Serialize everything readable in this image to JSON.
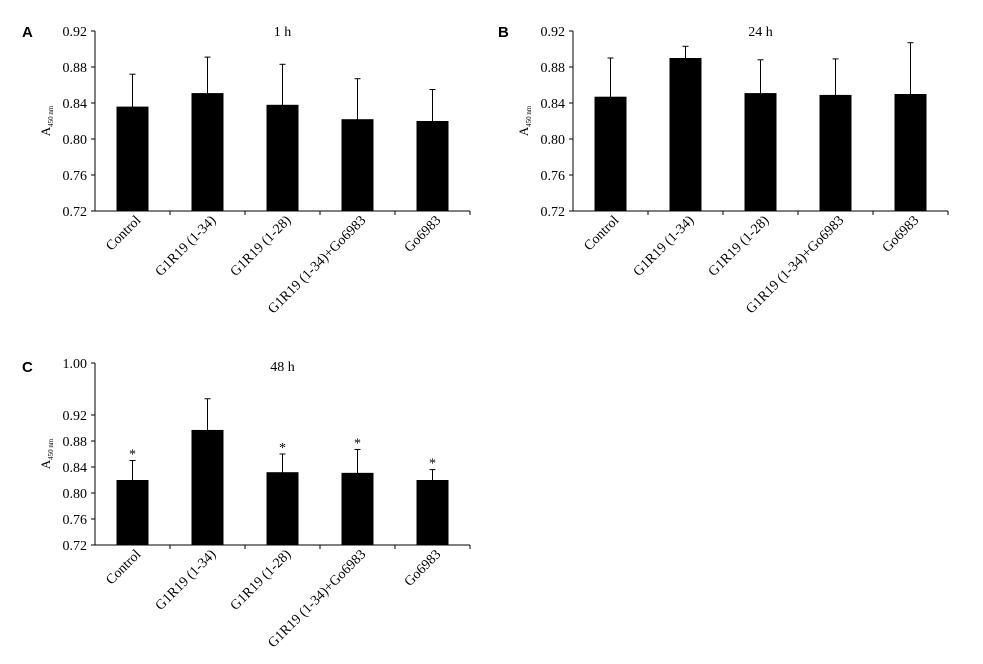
{
  "panels": [
    {
      "letter": "A",
      "ylabel_main": "A",
      "ylabel_sub": "450 nm",
      "chart_data": {
        "type": "bar",
        "title": "1 h",
        "categories": [
          "Control",
          "G1R19 (1-34)",
          "G1R19 (1-28)",
          "G1R19 (1-34)+Go6983",
          "Go6983"
        ],
        "series": [
          {
            "values": [
              0.836,
              0.851,
              0.838,
              0.822,
              0.82
            ],
            "errors": [
              0.036,
              0.04,
              0.045,
              0.045,
              0.035
            ]
          }
        ],
        "markers": [
          "",
          "",
          "",
          "",
          ""
        ],
        "xlabel": "",
        "ylabel": "A450 nm",
        "ylim": [
          0.72,
          0.92
        ],
        "yticks": [
          "0.72",
          "0.76",
          "0.80",
          "0.84",
          "0.88",
          "0.92"
        ],
        "grid": false,
        "legend": "none"
      }
    },
    {
      "letter": "B",
      "ylabel_main": "A",
      "ylabel_sub": "450 nm",
      "chart_data": {
        "type": "bar",
        "title": "24 h",
        "categories": [
          "Control",
          "G1R19 (1-34)",
          "G1R19 (1-28)",
          "G1R19 (1-34)+Go6983",
          "Go6983"
        ],
        "series": [
          {
            "values": [
              0.847,
              0.89,
              0.851,
              0.849,
              0.85
            ],
            "errors": [
              0.043,
              0.013,
              0.037,
              0.04,
              0.057
            ]
          }
        ],
        "markers": [
          "",
          "",
          "",
          "",
          ""
        ],
        "xlabel": "",
        "ylabel": "A450 nm",
        "ylim": [
          0.72,
          0.92
        ],
        "yticks": [
          "0.72",
          "0.76",
          "0.80",
          "0.84",
          "0.88",
          "0.92"
        ],
        "grid": false,
        "legend": "none"
      }
    },
    {
      "letter": "C",
      "ylabel_main": "A",
      "ylabel_sub": "450 nm",
      "chart_data": {
        "type": "bar",
        "title": "48 h",
        "categories": [
          "Control",
          "G1R19 (1-34)",
          "G1R19 (1-28)",
          "G1R19 (1-34)+Go6983",
          "Go6983"
        ],
        "series": [
          {
            "values": [
              0.82,
              0.897,
              0.832,
              0.831,
              0.82
            ],
            "errors": [
              0.03,
              0.048,
              0.028,
              0.036,
              0.016
            ]
          }
        ],
        "markers": [
          "*",
          "",
          "*",
          "*",
          "*"
        ],
        "xlabel": "",
        "ylabel": "A450 nm",
        "ylim": [
          0.72,
          1.0
        ],
        "yticks": [
          "0.72",
          "0.76",
          "0.80",
          "0.84",
          "0.88",
          "0.92",
          "1.00"
        ],
        "grid": false,
        "legend": "none"
      }
    }
  ]
}
